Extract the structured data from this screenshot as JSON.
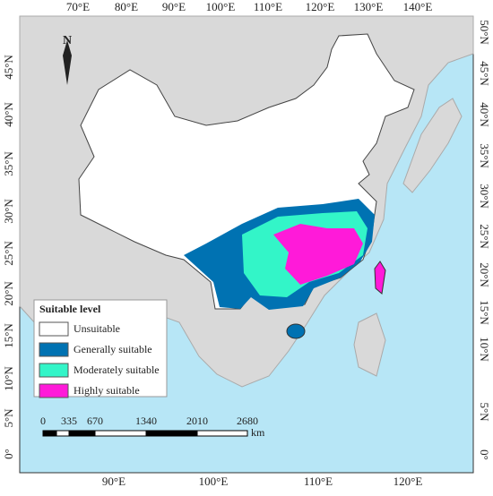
{
  "top_axis": [
    "70°E",
    "80°E",
    "90°E",
    "100°E",
    "110°E",
    "120°E",
    "130°E",
    "140°E"
  ],
  "bottom_axis": [
    "90°E",
    "100°E",
    "110°E",
    "120°E"
  ],
  "left_axis": [
    "45°N",
    "40°N",
    "35°N",
    "30°N",
    "25°N",
    "20°N",
    "15°N",
    "10°N",
    "5°N",
    "0°"
  ],
  "right_axis": [
    "50°N",
    "45°N",
    "40°N",
    "35°N",
    "30°N",
    "25°N",
    "20°N",
    "15°N",
    "10°N",
    "5°N",
    "0°"
  ],
  "north_arrow": "N",
  "legend": {
    "title": "Suitable level",
    "items": [
      {
        "label": "Unsuitable",
        "color": "#ffffff"
      },
      {
        "label": "Generally suitable",
        "color": "#0072b2"
      },
      {
        "label": "Moderately suitable",
        "color": "#33f5c8"
      },
      {
        "label": "Highly suitable",
        "color": "#ff1ad9"
      }
    ]
  },
  "scale_bar": {
    "labels": [
      "0",
      "335",
      "670",
      "1340",
      "2010",
      "2680"
    ],
    "unit": "km"
  }
}
